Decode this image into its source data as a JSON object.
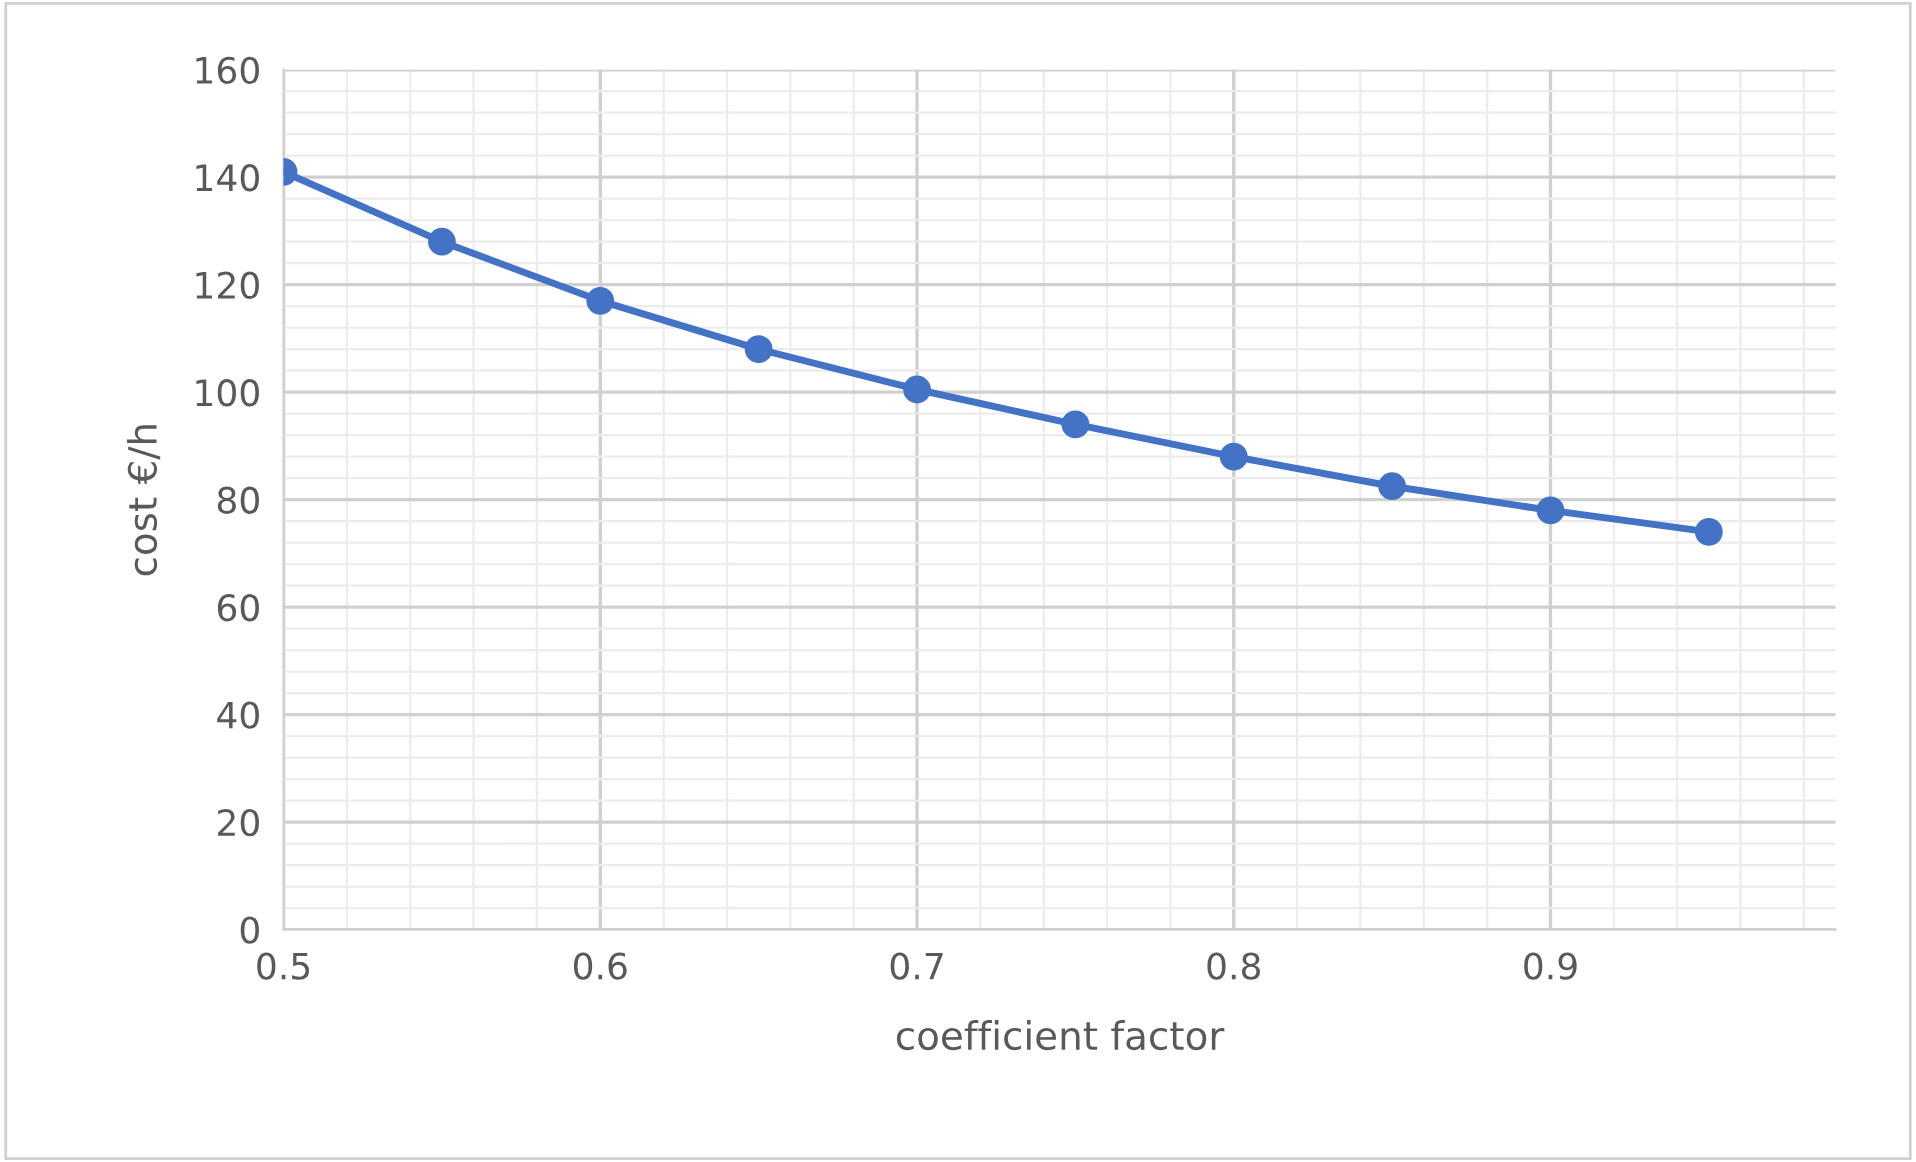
{
  "chart_data": {
    "type": "line",
    "xlabel": "coefficient factor",
    "ylabel": "cost €/h",
    "x": [
      0.5,
      0.55,
      0.6,
      0.65,
      0.7,
      0.75,
      0.8,
      0.85,
      0.9,
      0.95
    ],
    "series": [
      {
        "color": "#4472c4",
        "values": [
          141,
          128,
          117,
          108,
          100.5,
          94,
          88,
          82.5,
          78,
          74
        ]
      }
    ],
    "xlim": [
      0.5,
      0.99
    ],
    "xticks": [
      0.5,
      0.6,
      0.7,
      0.8,
      0.9
    ],
    "ylim": [
      0,
      160
    ],
    "yticks": [
      0,
      20,
      40,
      60,
      80,
      100,
      120,
      140,
      160
    ],
    "grid": true,
    "marker": "circle",
    "line_style": "solid",
    "legend": false
  }
}
